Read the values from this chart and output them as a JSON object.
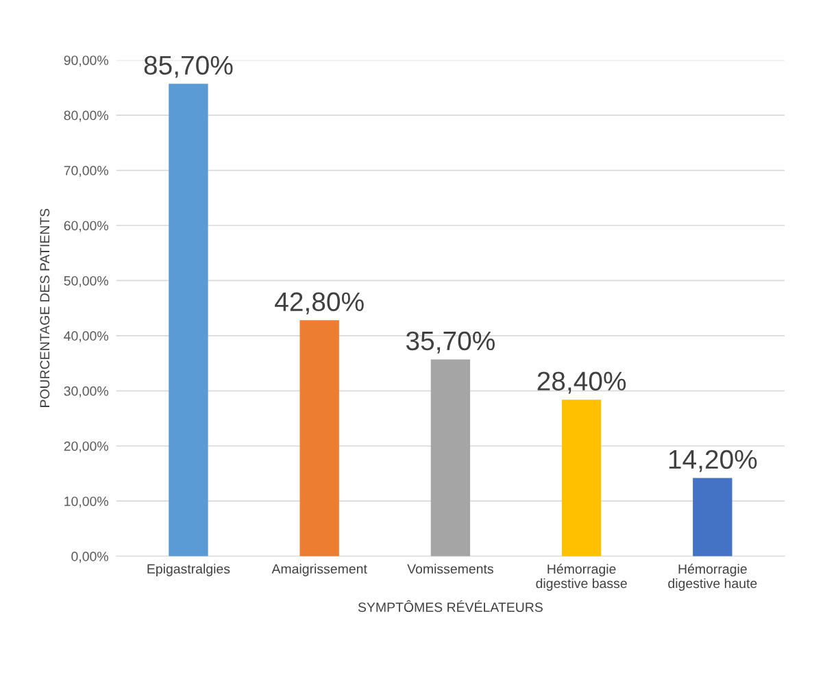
{
  "chart_data": {
    "type": "bar",
    "xlabel": "SYMPTÔMES RÉVÉLATEURS",
    "ylabel": "POURCENTAGE DES PATIENTS",
    "categories": [
      "Epigastralgies",
      "Amaigrissement",
      "Vomissements",
      "Hémorragie\ndigestive basse",
      "Hémorragie\ndigestive haute"
    ],
    "values": [
      85.7,
      42.8,
      35.7,
      28.4,
      14.2
    ],
    "colors": [
      "#5b9bd5",
      "#ed7d31",
      "#a5a5a5",
      "#ffc000",
      "#4472c4"
    ],
    "value_labels": [
      "85,70%",
      "42,80%",
      "35,70%",
      "28,40%",
      "14,20%"
    ],
    "ylim": [
      0,
      90
    ],
    "yticks": [
      {
        "value": 0,
        "label": "0,00%"
      },
      {
        "value": 10,
        "label": "10,00%"
      },
      {
        "value": 20,
        "label": "20,00%"
      },
      {
        "value": 30,
        "label": "30,00%"
      },
      {
        "value": 40,
        "label": "40,00%"
      },
      {
        "value": 50,
        "label": "50,00%"
      },
      {
        "value": 60,
        "label": "60,00%"
      },
      {
        "value": 70,
        "label": "70,00%"
      },
      {
        "value": 80,
        "label": "80,00%"
      },
      {
        "value": 90,
        "label": "90,00%"
      }
    ],
    "grid": "y",
    "legend": false
  }
}
